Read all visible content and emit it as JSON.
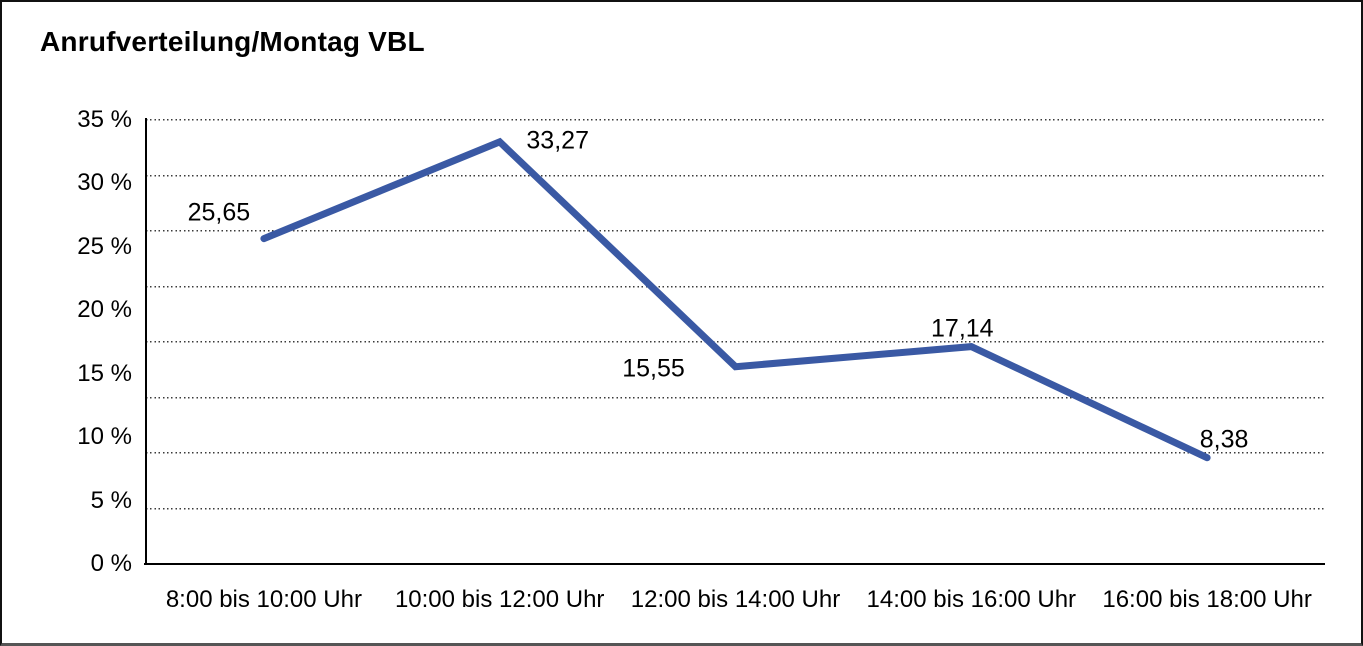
{
  "title": "Anrufverteilung/Montag VBL",
  "chart_data": {
    "type": "line",
    "title": "Anrufverteilung/Montag VBL",
    "categories": [
      "8:00 bis 10:00 Uhr",
      "10:00 bis 12:00 Uhr",
      "12:00 bis 14:00 Uhr",
      "14:00 bis 16:00 Uhr",
      "16:00 bis 18:00 Uhr"
    ],
    "series": [
      {
        "name": "Anrufverteilung Montag VBL",
        "values": [
          25.65,
          33.27,
          15.55,
          17.14,
          8.38
        ],
        "value_labels": [
          "25,65",
          "33,27",
          "15,55",
          "17,14",
          "8,38"
        ]
      }
    ],
    "xlabel": "",
    "ylabel": "",
    "ylim": [
      0,
      35
    ],
    "ytick_step": 5,
    "ytick_labels": [
      "35 %",
      "30 %",
      "25 %",
      "20 %",
      "15 %",
      "10 %",
      "5 %",
      "0 %"
    ],
    "grid": "horizontal-dotted",
    "legend_position": "none",
    "line_color": "#3A59A4",
    "text_color": "#000000"
  }
}
